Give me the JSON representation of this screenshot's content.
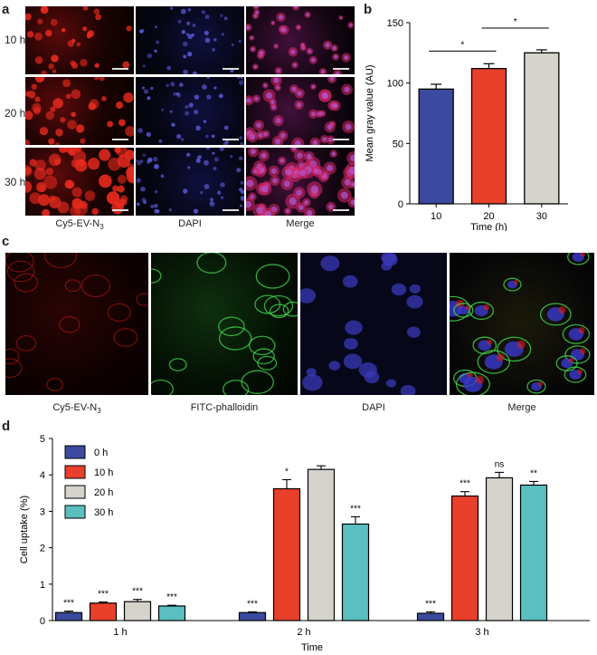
{
  "panels": {
    "a": "a",
    "b": "b",
    "c": "c",
    "d": "d"
  },
  "panel_a": {
    "row_labels": [
      "10 h",
      "20 h",
      "30 h"
    ],
    "col_labels": {
      "cy5_main": "Cy5-EV-N",
      "cy5_sub": "3",
      "dapi": "DAPI",
      "merge": "Merge"
    }
  },
  "panel_c": {
    "labels": {
      "cy5_main": "Cy5-EV-N",
      "cy5_sub": "3",
      "fitc": "FITC-phalloidin",
      "dapi": "DAPI",
      "merge": "Merge"
    }
  },
  "chart_data": [
    {
      "id": "b",
      "type": "bar",
      "categories": [
        "10",
        "20",
        "30"
      ],
      "values": [
        95,
        112,
        125
      ],
      "errors": [
        4,
        4,
        2.5
      ],
      "colors": [
        "#3b4a9e",
        "#e8402b",
        "#d6d2cc"
      ],
      "xlabel": "Time (h)",
      "ylabel": "Mean gray value (AU)",
      "ylim": [
        0,
        150
      ],
      "yticks": [
        0,
        50,
        100,
        150
      ],
      "significance": [
        {
          "from": 0,
          "to": 1,
          "label": "*"
        },
        {
          "from": 1,
          "to": 2,
          "label": "*"
        }
      ]
    },
    {
      "id": "d",
      "type": "bar",
      "categories": [
        "1 h",
        "2 h",
        "3 h"
      ],
      "series": [
        {
          "name": "0 h",
          "color": "#3b4a9e",
          "values": [
            0.22,
            0.22,
            0.2
          ],
          "errors": [
            0.04,
            0.02,
            0.04
          ],
          "labels": [
            "***",
            "***",
            "***"
          ]
        },
        {
          "name": "10 h",
          "color": "#e8402b",
          "values": [
            0.48,
            3.62,
            3.42
          ],
          "errors": [
            0.03,
            0.25,
            0.12
          ],
          "labels": [
            "***",
            "*",
            "***"
          ]
        },
        {
          "name": "20 h",
          "color": "#d6d2cc",
          "values": [
            0.52,
            4.15,
            3.92
          ],
          "errors": [
            0.06,
            0.1,
            0.15
          ],
          "labels": [
            "***",
            "",
            "ns"
          ]
        },
        {
          "name": "30 h",
          "color": "#5bbfc0",
          "values": [
            0.4,
            2.65,
            3.72
          ],
          "errors": [
            0.02,
            0.2,
            0.1
          ],
          "labels": [
            "***",
            "***",
            "**"
          ]
        }
      ],
      "xlabel": "Time",
      "ylabel": "Cell uptake (%)",
      "ylim": [
        0,
        5
      ],
      "yticks": [
        0,
        1,
        2,
        3,
        4,
        5
      ],
      "legend": "top-left"
    }
  ]
}
